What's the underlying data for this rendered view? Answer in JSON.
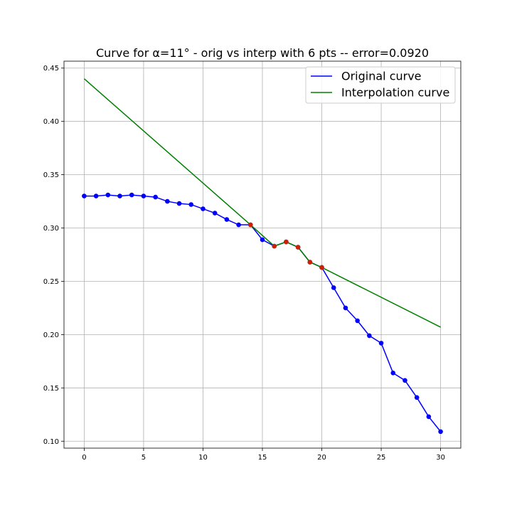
{
  "chart_data": {
    "type": "line",
    "title": "Curve for α=11° - orig vs interp with 6 pts -- error=0.0920",
    "xlabel": "",
    "ylabel": "",
    "xlim": [
      -1.7,
      31.7
    ],
    "ylim": [
      0.0935,
      0.4565
    ],
    "x_ticks": [
      0,
      5,
      10,
      15,
      20,
      25,
      30
    ],
    "x_tick_labels": [
      "0",
      "5",
      "10",
      "15",
      "20",
      "25",
      "30"
    ],
    "y_ticks": [
      0.1,
      0.15,
      0.2,
      0.25,
      0.3,
      0.35,
      0.4,
      0.45
    ],
    "y_tick_labels": [
      "0.10",
      "0.15",
      "0.20",
      "0.25",
      "0.30",
      "0.35",
      "0.40",
      "0.45"
    ],
    "grid": true,
    "legend_position": "top-right",
    "series": [
      {
        "name": "Original curve",
        "color": "#0000ff",
        "marker": "circle",
        "x": [
          0,
          1,
          2,
          3,
          4,
          5,
          6,
          7,
          8,
          9,
          10,
          11,
          12,
          13,
          14,
          15,
          16,
          17,
          18,
          19,
          20,
          21,
          22,
          23,
          24,
          25,
          26,
          27,
          28,
          29,
          30
        ],
        "y": [
          0.33,
          0.33,
          0.331,
          0.33,
          0.331,
          0.33,
          0.329,
          0.325,
          0.323,
          0.322,
          0.318,
          0.314,
          0.308,
          0.303,
          0.303,
          0.289,
          0.283,
          0.287,
          0.282,
          0.268,
          0.263,
          0.244,
          0.225,
          0.213,
          0.199,
          0.192,
          0.164,
          0.157,
          0.141,
          0.123,
          0.109
        ]
      },
      {
        "name": "Interpolation curve",
        "color": "#008000",
        "marker": "none",
        "x": [
          0,
          14,
          16,
          17,
          18,
          19,
          20,
          30
        ],
        "y": [
          0.44,
          0.303,
          0.283,
          0.287,
          0.282,
          0.268,
          0.263,
          0.207
        ]
      },
      {
        "name": "",
        "color": "#cc2200",
        "marker": "circle",
        "line": false,
        "x": [
          14,
          16,
          17,
          18,
          19,
          20
        ],
        "y": [
          0.303,
          0.283,
          0.287,
          0.282,
          0.268,
          0.263
        ]
      }
    ]
  }
}
